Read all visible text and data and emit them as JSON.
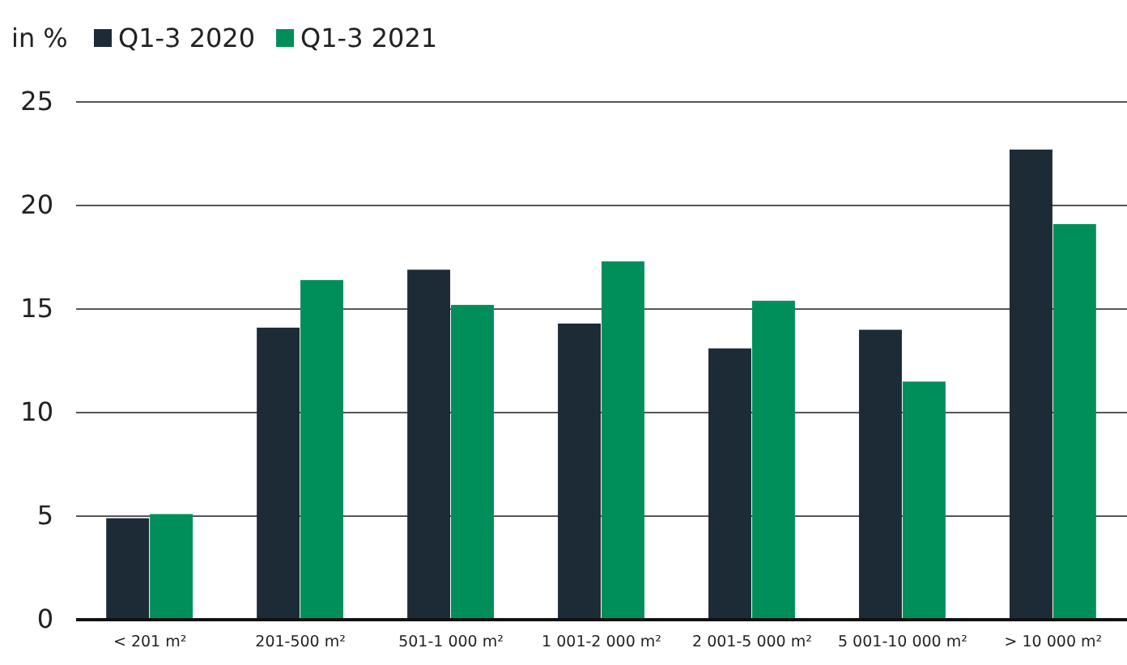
{
  "chart_data": {
    "type": "bar",
    "ylabel": "in %",
    "categories": [
      "< 201 m²",
      "201-500 m²",
      "501-1 000 m²",
      "1 001-2 000 m²",
      "2 001-5 000 m²",
      "5 001-10 000 m²",
      "> 10 000 m²"
    ],
    "series": [
      {
        "name": "Q1-3 2020",
        "color": "#1c2b36",
        "values": [
          4.9,
          14.1,
          16.9,
          14.3,
          13.1,
          14.0,
          22.7
        ]
      },
      {
        "name": "Q1-3 2021",
        "color": "#008f5a",
        "values": [
          5.1,
          16.4,
          15.2,
          17.3,
          15.4,
          11.5,
          19.1
        ]
      }
    ],
    "ylim": [
      0,
      25
    ],
    "yticks": [
      0,
      5,
      10,
      15,
      20,
      25
    ],
    "grid": "y",
    "legend": "top left"
  }
}
